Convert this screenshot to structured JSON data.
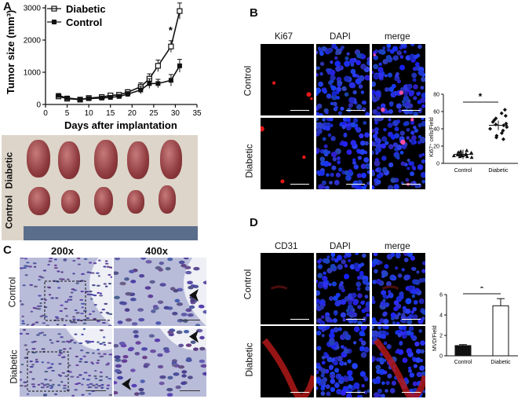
{
  "panels": {
    "A": "A",
    "B": "B",
    "C": "C",
    "D": "D"
  },
  "chart_data": [
    {
      "type": "line",
      "xlabel": "Days after implantation",
      "ylabel": "Tumor size (mm³)",
      "xlim": [
        0,
        35
      ],
      "ylim": [
        0,
        3000
      ],
      "xticks": [
        "0",
        "5",
        "10",
        "15",
        "20",
        "25",
        "30",
        "35"
      ],
      "yticks": [
        "0",
        "1000",
        "2000",
        "3000"
      ],
      "x": [
        3,
        5,
        8,
        10,
        13,
        15,
        17,
        19,
        22,
        24,
        26,
        29,
        31
      ],
      "series": [
        {
          "name": "Diabetic",
          "marker": "open-square",
          "values": [
            250,
            180,
            150,
            200,
            230,
            280,
            300,
            380,
            550,
            800,
            1200,
            1800,
            2900
          ]
        },
        {
          "name": "Control",
          "marker": "filled-square",
          "values": [
            280,
            200,
            160,
            180,
            200,
            220,
            250,
            320,
            450,
            650,
            650,
            750,
            1200
          ]
        }
      ],
      "annotations": [
        "*",
        "*"
      ],
      "legend": "top-left"
    },
    {
      "type": "scatter",
      "ylabel": "Ki67⁺ cells/Field",
      "categories": [
        "Control",
        "Diabetic"
      ],
      "ylim": [
        0,
        80
      ],
      "yticks": [
        "0",
        "20",
        "40",
        "60",
        "80"
      ],
      "series": [
        {
          "name": "Control",
          "values": [
            8,
            10,
            12,
            9,
            11,
            13,
            7,
            10,
            14,
            9,
            12,
            8,
            11,
            10,
            15,
            9
          ]
        },
        {
          "name": "Diabetic",
          "values": [
            28,
            32,
            35,
            38,
            40,
            42,
            44,
            46,
            48,
            50,
            52,
            55,
            58,
            62,
            30,
            45
          ]
        }
      ],
      "annotations": [
        "*"
      ]
    },
    {
      "type": "bar",
      "ylabel": "MVD/Field",
      "categories": [
        "Control",
        "Diabetic"
      ],
      "values": [
        1.0,
        4.9
      ],
      "errors": [
        0.1,
        0.7
      ],
      "ylim": [
        0,
        6
      ],
      "yticks": [
        "0",
        "2",
        "4",
        "6"
      ],
      "annotations": [
        "*"
      ]
    }
  ],
  "photoA": {
    "row1": "Diabetic",
    "row2": "Control"
  },
  "B": {
    "cols": [
      "Ki67",
      "DAPI",
      "merge"
    ],
    "rows": [
      "Control",
      "Diabetic"
    ]
  },
  "C": {
    "cols": [
      "200x",
      "400x"
    ],
    "rows": [
      "Control",
      "Diabetic"
    ]
  },
  "D": {
    "cols": [
      "CD31",
      "DAPI",
      "merge"
    ],
    "rows": [
      "Control",
      "Diabetic"
    ]
  }
}
